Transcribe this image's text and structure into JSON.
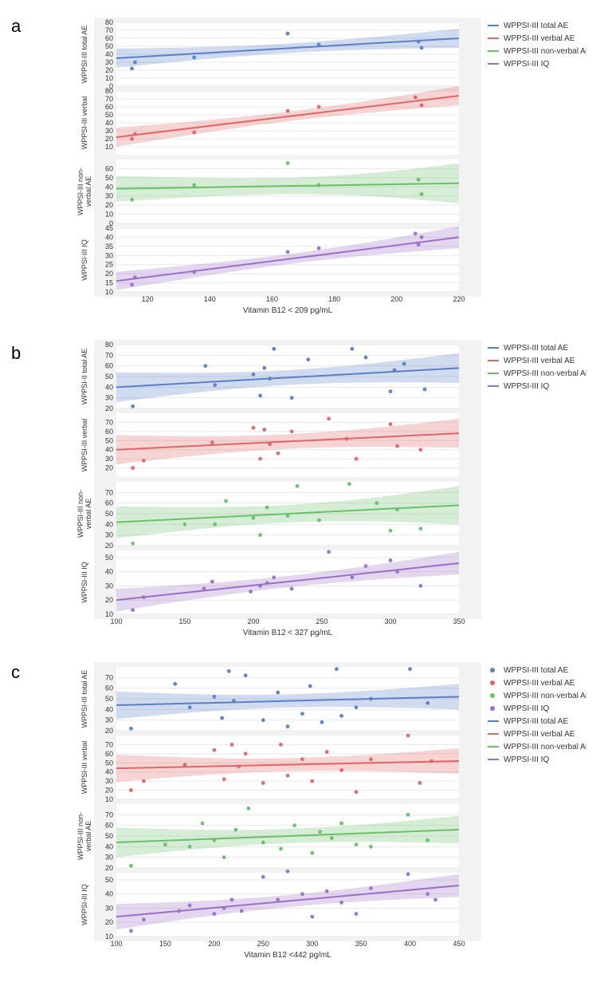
{
  "page_bg": "#ffffff",
  "plot_area_bg": "#f2f2f2",
  "subplot_bg": "#ffffff",
  "grid_color": "#e8e8e8",
  "text_color": "#333333",
  "label_fontsize": 9,
  "axis_title_fontsize": 10,
  "panel_label_fontsize": 22,
  "series_meta": [
    {
      "key": "total",
      "label": "WPPSI-III total AE",
      "color": "#5b7fc7"
    },
    {
      "key": "verbal",
      "label": "WPPSI-III verbal AE",
      "color": "#e06666"
    },
    {
      "key": "nonverbal",
      "label": "WPPSI-III non-verbal AE",
      "color": "#6abf69"
    },
    {
      "key": "iq",
      "label": "WPPSI-III   IQ",
      "color": "#9b6fc8"
    }
  ],
  "panels": [
    {
      "id": "a",
      "x_label": "Vitamin B12  < 209 pg/mL",
      "legend_style": "line",
      "xlim": [
        110,
        220
      ],
      "xticks": [
        120,
        140,
        160,
        180,
        200,
        220
      ],
      "subplots": [
        {
          "key": "total",
          "ylabel": "WPPSI-III total AE",
          "ylim": [
            0,
            80
          ],
          "yticks": [
            0,
            10,
            20,
            30,
            40,
            50,
            60,
            70,
            80
          ],
          "fit": {
            "x": [
              110,
              220
            ],
            "y": [
              35,
              60
            ]
          },
          "ci_half": [
            12,
            12
          ],
          "points": [
            [
              115,
              22
            ],
            [
              116,
              30
            ],
            [
              135,
              36
            ],
            [
              165,
              66
            ],
            [
              175,
              52
            ],
            [
              207,
              56
            ],
            [
              208,
              48
            ]
          ]
        },
        {
          "key": "verbal",
          "ylabel": "WPPSI-III verbal",
          "ylim": [
            0,
            80
          ],
          "yticks": [
            10,
            20,
            30,
            40,
            50,
            60,
            70,
            80
          ],
          "fit": {
            "x": [
              110,
              220
            ],
            "y": [
              22,
              74
            ]
          },
          "ci_half": [
            12,
            12
          ],
          "points": [
            [
              115,
              20
            ],
            [
              116,
              26
            ],
            [
              135,
              28
            ],
            [
              165,
              55
            ],
            [
              175,
              60
            ],
            [
              206,
              72
            ],
            [
              208,
              62
            ]
          ]
        },
        {
          "key": "nonverbal",
          "ylabel": "WPPSI-III non-\nverbal AE",
          "ylim": [
            0,
            70
          ],
          "yticks": [
            0,
            10,
            20,
            30,
            40,
            50,
            60
          ],
          "fit": {
            "x": [
              110,
              220
            ],
            "y": [
              38,
              44
            ]
          },
          "ci_half": [
            14,
            22
          ],
          "points": [
            [
              115,
              26
            ],
            [
              135,
              42
            ],
            [
              165,
              66
            ],
            [
              175,
              42
            ],
            [
              207,
              48
            ],
            [
              208,
              32
            ]
          ]
        },
        {
          "key": "iq",
          "ylabel": "WPPSI-III   IQ",
          "ylim": [
            10,
            45
          ],
          "yticks": [
            10,
            15,
            20,
            25,
            30,
            35,
            40,
            45
          ],
          "fit": {
            "x": [
              110,
              220
            ],
            "y": [
              16,
              40
            ]
          },
          "ci_half": [
            5,
            6
          ],
          "points": [
            [
              115,
              14
            ],
            [
              116,
              18
            ],
            [
              135,
              21
            ],
            [
              165,
              32
            ],
            [
              175,
              34
            ],
            [
              206,
              42
            ],
            [
              207,
              36
            ],
            [
              208,
              40
            ]
          ]
        }
      ]
    },
    {
      "id": "b",
      "x_label": "Vitamin B12 < 327 pg/mL",
      "legend_style": "line",
      "xlim": [
        100,
        350
      ],
      "xticks": [
        100,
        150,
        200,
        250,
        300,
        350
      ],
      "subplots": [
        {
          "key": "total",
          "ylabel": "WPPSI-II total AE",
          "ylim": [
            20,
            80
          ],
          "yticks": [
            20,
            30,
            40,
            50,
            60,
            70,
            80
          ],
          "fit": {
            "x": [
              100,
              350
            ],
            "y": [
              40,
              58
            ]
          },
          "ci_half": [
            14,
            14
          ],
          "points": [
            [
              112,
              22
            ],
            [
              165,
              60
            ],
            [
              172,
              42
            ],
            [
              200,
              52
            ],
            [
              205,
              32
            ],
            [
              208,
              58
            ],
            [
              212,
              48
            ],
            [
              215,
              76
            ],
            [
              228,
              30
            ],
            [
              240,
              66
            ],
            [
              272,
              76
            ],
            [
              282,
              68
            ],
            [
              300,
              36
            ],
            [
              303,
              56
            ],
            [
              310,
              62
            ],
            [
              325,
              38
            ]
          ]
        },
        {
          "key": "verbal",
          "ylabel": "WPPSI-III verbal",
          "ylim": [
            10,
            80
          ],
          "yticks": [
            20,
            30,
            40,
            50,
            60,
            70
          ],
          "fit": {
            "x": [
              100,
              350
            ],
            "y": [
              40,
              58
            ]
          },
          "ci_half": [
            16,
            16
          ],
          "points": [
            [
              112,
              20
            ],
            [
              120,
              28
            ],
            [
              170,
              48
            ],
            [
              200,
              64
            ],
            [
              205,
              30
            ],
            [
              208,
              62
            ],
            [
              212,
              46
            ],
            [
              218,
              36
            ],
            [
              228,
              60
            ],
            [
              255,
              74
            ],
            [
              268,
              52
            ],
            [
              275,
              30
            ],
            [
              300,
              68
            ],
            [
              305,
              44
            ],
            [
              322,
              40
            ]
          ]
        },
        {
          "key": "nonverbal",
          "ylabel": "WPPSI-III non-\nverbal AE",
          "ylim": [
            20,
            80
          ],
          "yticks": [
            20,
            30,
            40,
            50,
            60,
            70
          ],
          "fit": {
            "x": [
              100,
              350
            ],
            "y": [
              42,
              58
            ]
          },
          "ci_half": [
            15,
            18
          ],
          "points": [
            [
              112,
              22
            ],
            [
              150,
              40
            ],
            [
              172,
              40
            ],
            [
              180,
              62
            ],
            [
              200,
              46
            ],
            [
              205,
              30
            ],
            [
              210,
              56
            ],
            [
              225,
              48
            ],
            [
              232,
              76
            ],
            [
              248,
              44
            ],
            [
              270,
              78
            ],
            [
              290,
              60
            ],
            [
              300,
              34
            ],
            [
              305,
              54
            ],
            [
              322,
              36
            ]
          ]
        },
        {
          "key": "iq",
          "ylabel": "WPPSI-III   IQ",
          "ylim": [
            10,
            55
          ],
          "yticks": [
            10,
            20,
            30,
            40,
            50
          ],
          "fit": {
            "x": [
              100,
              350
            ],
            "y": [
              20,
              46
            ]
          },
          "ci_half": [
            8,
            8
          ],
          "points": [
            [
              112,
              13
            ],
            [
              120,
              22
            ],
            [
              164,
              28
            ],
            [
              170,
              33
            ],
            [
              198,
              26
            ],
            [
              205,
              30
            ],
            [
              210,
              32
            ],
            [
              215,
              36
            ],
            [
              228,
              28
            ],
            [
              255,
              54
            ],
            [
              272,
              36
            ],
            [
              282,
              44
            ],
            [
              300,
              48
            ],
            [
              305,
              40
            ],
            [
              322,
              30
            ]
          ]
        }
      ]
    },
    {
      "id": "c",
      "x_label": "Vitamin B12  <442  pg/mL",
      "legend_style": "both",
      "xlim": [
        100,
        450
      ],
      "xticks": [
        100,
        150,
        200,
        250,
        300,
        350,
        400,
        450
      ],
      "subplots": [
        {
          "key": "total",
          "ylabel": "WPPSI-III total AE",
          "ylim": [
            20,
            80
          ],
          "yticks": [
            20,
            30,
            40,
            50,
            60,
            70
          ],
          "fit": {
            "x": [
              100,
              450
            ],
            "y": [
              44,
              52
            ]
          },
          "ci_half": [
            13,
            12
          ],
          "points": [
            [
              115,
              22
            ],
            [
              160,
              64
            ],
            [
              175,
              42
            ],
            [
              200,
              52
            ],
            [
              208,
              32
            ],
            [
              215,
              76
            ],
            [
              220,
              48
            ],
            [
              232,
              72
            ],
            [
              250,
              30
            ],
            [
              265,
              56
            ],
            [
              275,
              24
            ],
            [
              290,
              36
            ],
            [
              298,
              62
            ],
            [
              310,
              28
            ],
            [
              325,
              78
            ],
            [
              330,
              34
            ],
            [
              345,
              42
            ],
            [
              360,
              50
            ],
            [
              400,
              78
            ],
            [
              418,
              46
            ]
          ]
        },
        {
          "key": "verbal",
          "ylabel": "WPPSI-III verbal",
          "ylim": [
            10,
            80
          ],
          "yticks": [
            10,
            20,
            30,
            40,
            50,
            60,
            70
          ],
          "fit": {
            "x": [
              100,
              450
            ],
            "y": [
              44,
              52
            ]
          },
          "ci_half": [
            15,
            14
          ],
          "points": [
            [
              115,
              20
            ],
            [
              128,
              30
            ],
            [
              170,
              48
            ],
            [
              200,
              64
            ],
            [
              210,
              32
            ],
            [
              218,
              70
            ],
            [
              225,
              46
            ],
            [
              232,
              60
            ],
            [
              250,
              28
            ],
            [
              268,
              70
            ],
            [
              275,
              36
            ],
            [
              290,
              54
            ],
            [
              300,
              30
            ],
            [
              315,
              62
            ],
            [
              330,
              42
            ],
            [
              345,
              18
            ],
            [
              360,
              54
            ],
            [
              398,
              80
            ],
            [
              410,
              28
            ],
            [
              422,
              52
            ]
          ]
        },
        {
          "key": "nonverbal",
          "ylabel": "WPPSI-III non-\nverbal AE",
          "ylim": [
            20,
            80
          ],
          "yticks": [
            20,
            30,
            40,
            50,
            60,
            70
          ],
          "fit": {
            "x": [
              100,
              450
            ],
            "y": [
              44,
              56
            ]
          },
          "ci_half": [
            14,
            13
          ],
          "points": [
            [
              115,
              22
            ],
            [
              150,
              42
            ],
            [
              175,
              40
            ],
            [
              188,
              62
            ],
            [
              200,
              46
            ],
            [
              210,
              30
            ],
            [
              222,
              56
            ],
            [
              235,
              76
            ],
            [
              250,
              44
            ],
            [
              268,
              38
            ],
            [
              282,
              60
            ],
            [
              300,
              34
            ],
            [
              308,
              54
            ],
            [
              320,
              48
            ],
            [
              330,
              62
            ],
            [
              345,
              42
            ],
            [
              360,
              40
            ],
            [
              398,
              70
            ],
            [
              418,
              46
            ]
          ]
        },
        {
          "key": "iq",
          "ylabel": "WPPSI-III   IQ",
          "ylim": [
            10,
            55
          ],
          "yticks": [
            10,
            20,
            30,
            40,
            50
          ],
          "fit": {
            "x": [
              100,
              450
            ],
            "y": [
              24,
              46
            ]
          },
          "ci_half": [
            9,
            8
          ],
          "points": [
            [
              115,
              14
            ],
            [
              128,
              22
            ],
            [
              164,
              28
            ],
            [
              175,
              32
            ],
            [
              200,
              26
            ],
            [
              210,
              30
            ],
            [
              218,
              36
            ],
            [
              228,
              28
            ],
            [
              250,
              52
            ],
            [
              265,
              36
            ],
            [
              275,
              56
            ],
            [
              290,
              40
            ],
            [
              300,
              24
            ],
            [
              315,
              42
            ],
            [
              330,
              34
            ],
            [
              345,
              26
            ],
            [
              360,
              44
            ],
            [
              398,
              54
            ],
            [
              418,
              40
            ],
            [
              426,
              36
            ]
          ]
        }
      ]
    }
  ]
}
